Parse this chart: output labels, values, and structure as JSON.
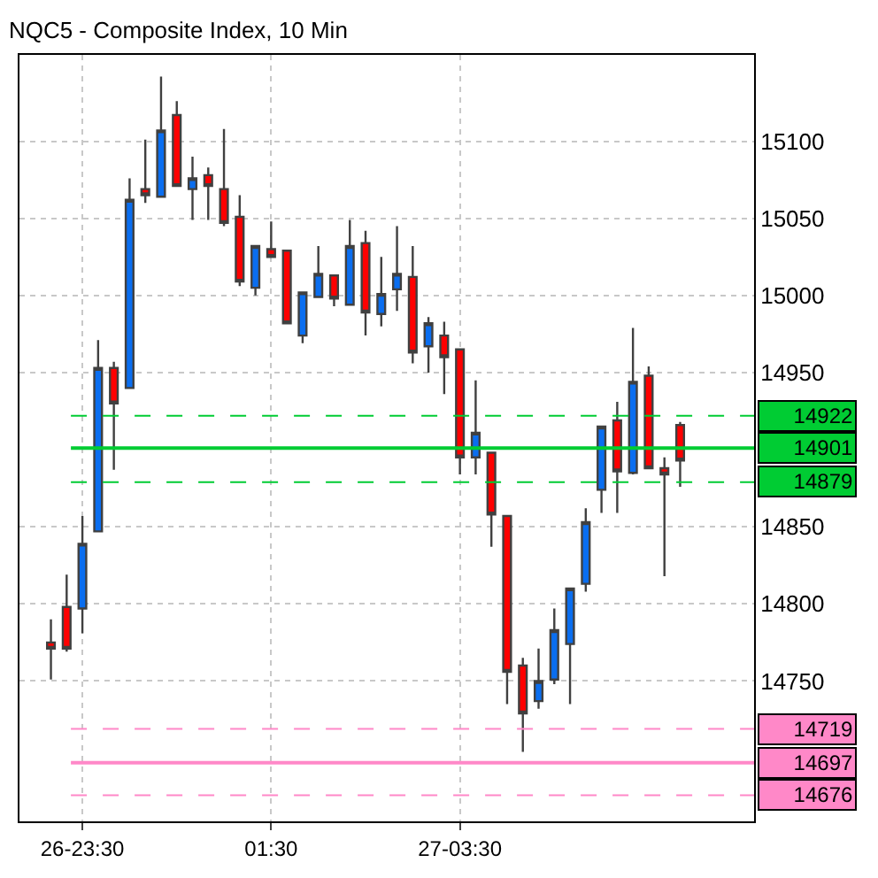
{
  "chart_data": {
    "type": "candlestick",
    "title": "NQC5 - Composite Index, 10 Min",
    "categories": [
      null,
      null,
      "26-23:30",
      null,
      null,
      null,
      null,
      null,
      null,
      null,
      null,
      null,
      null,
      null,
      "01:30",
      null,
      null,
      null,
      null,
      null,
      null,
      null,
      null,
      null,
      null,
      null,
      "27-03:30",
      null,
      null,
      null,
      null,
      null,
      null,
      null,
      null,
      null,
      null,
      null,
      null,
      null,
      null
    ],
    "ohlc": [
      [
        14775,
        14790,
        14751,
        14771
      ],
      [
        14798,
        14819,
        14769,
        14771
      ],
      [
        14797,
        14857,
        14781,
        14839
      ],
      [
        14847,
        14971,
        14847,
        14953
      ],
      [
        14953,
        14957,
        14887,
        14930
      ],
      [
        14940,
        15076,
        14940,
        15062
      ],
      [
        15069,
        15101,
        15060,
        15065
      ],
      [
        15064,
        15142,
        15064,
        15107
      ],
      [
        15117,
        15126,
        15071,
        15071
      ],
      [
        15069,
        15090,
        15049,
        15076
      ],
      [
        15078,
        15083,
        15049,
        15071
      ],
      [
        15069,
        15108,
        15045,
        15047
      ],
      [
        15051,
        15065,
        15006,
        15009
      ],
      [
        15005,
        15032,
        15000,
        15032
      ],
      [
        15030,
        15048,
        15025,
        15025
      ],
      [
        15029,
        15029,
        14982,
        14982
      ],
      [
        14974,
        15002,
        14969,
        15002
      ],
      [
        14999,
        15032,
        14999,
        15014
      ],
      [
        15013,
        15013,
        14993,
        14998
      ],
      [
        14994,
        15049,
        14994,
        15032
      ],
      [
        15034,
        15042,
        14974,
        14989
      ],
      [
        14988,
        15025,
        14980,
        15001
      ],
      [
        15004,
        15045,
        14990,
        15014
      ],
      [
        15012,
        15032,
        14956,
        14963
      ],
      [
        14967,
        14986,
        14950,
        14982
      ],
      [
        14974,
        14983,
        14936,
        14960
      ],
      [
        14965,
        14965,
        14884,
        14895
      ],
      [
        14895,
        14945,
        14884,
        14911
      ],
      [
        14898,
        14898,
        14837,
        14858
      ],
      [
        14857,
        14857,
        14735,
        14756
      ],
      [
        14760,
        14765,
        14704,
        14729
      ],
      [
        14737,
        14771,
        14732,
        14750
      ],
      [
        14751,
        14797,
        14748,
        14783
      ],
      [
        14774,
        14810,
        14735,
        14810
      ],
      [
        14813,
        14862,
        14808,
        14853
      ],
      [
        14874,
        14915,
        14859,
        14915
      ],
      [
        14919,
        14931,
        14859,
        14886
      ],
      [
        14885,
        14979,
        14884,
        14944
      ],
      [
        14948,
        14954,
        14888,
        14888
      ],
      [
        14888,
        14895,
        14818,
        14884
      ],
      [
        14916,
        14918,
        14876,
        14893
      ]
    ],
    "colors": [
      "#ff0000",
      "#ff0000",
      "#0a6ef0",
      "#0a6ef0",
      "#ff0000",
      "#0a6ef0",
      "#ff0000",
      "#0a6ef0",
      "#ff0000",
      "#0a6ef0",
      "#ff0000",
      "#ff0000",
      "#ff0000",
      "#0a6ef0",
      "#ff0000",
      "#ff0000",
      "#0a6ef0",
      "#0a6ef0",
      "#ff0000",
      "#0a6ef0",
      "#ff0000",
      "#0a6ef0",
      "#0a6ef0",
      "#ff0000",
      "#0a6ef0",
      "#ff0000",
      "#ff0000",
      "#0a6ef0",
      "#ff0000",
      "#ff0000",
      "#ff0000",
      "#0a6ef0",
      "#0a6ef0",
      "#0a6ef0",
      "#0a6ef0",
      "#0a6ef0",
      "#ff0000",
      "#0a6ef0",
      "#ff0000",
      "#ff0000",
      "#ff0000"
    ],
    "ylim": [
      14659,
      15156
    ],
    "yticks": [
      14750,
      14800,
      14850,
      14950,
      15000,
      15050,
      15100
    ],
    "ref_lines": [
      {
        "axis": "y",
        "value": 14922,
        "label": "14922",
        "color": "#00cc33",
        "line_style": "dashed"
      },
      {
        "axis": "y",
        "value": 14901,
        "label": "14901",
        "color": "#00cc33",
        "line_style": "solid"
      },
      {
        "axis": "y",
        "value": 14879,
        "label": "14879",
        "color": "#00cc33",
        "line_style": "dashed"
      },
      {
        "axis": "y",
        "value": 14719,
        "label": "14719",
        "color": "#ff88c8",
        "line_style": "dashed"
      },
      {
        "axis": "y",
        "value": 14697,
        "label": "14697",
        "color": "#ff88c8",
        "line_style": "solid"
      },
      {
        "axis": "y",
        "value": 14676,
        "label": "14676",
        "color": "#ff88c8",
        "line_style": "dashed"
      }
    ],
    "grid": true
  }
}
